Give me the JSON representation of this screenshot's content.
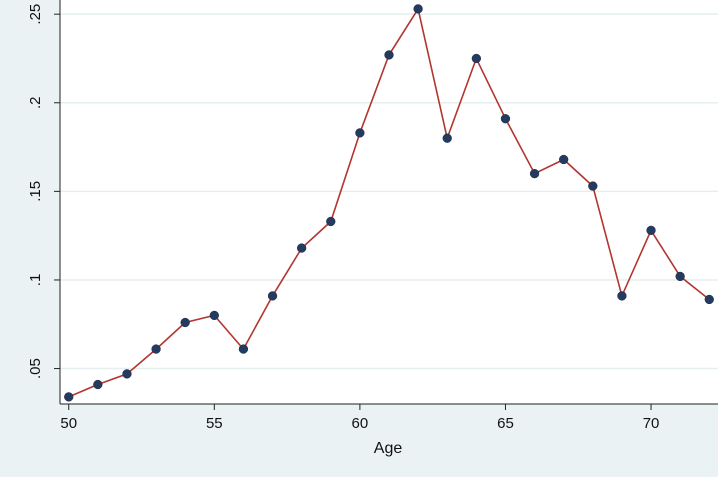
{
  "chart_data": {
    "type": "line",
    "title": "",
    "xlabel": "Age",
    "ylabel": "",
    "x": [
      50,
      51,
      52,
      53,
      54,
      55,
      56,
      57,
      58,
      59,
      60,
      61,
      62,
      63,
      64,
      65,
      66,
      67,
      68,
      69,
      70,
      71,
      72
    ],
    "series": [
      {
        "values": [
          0.034,
          0.041,
          0.047,
          0.061,
          0.076,
          0.08,
          0.061,
          0.091,
          0.118,
          0.133,
          0.183,
          0.227,
          0.253,
          0.18,
          0.225,
          0.191,
          0.16,
          0.168,
          0.153,
          0.091,
          0.128,
          0.102,
          0.089
        ],
        "line_color": "#b2352f",
        "marker_color": "#243a5e"
      }
    ],
    "xlim": [
      49.7,
      72.3
    ],
    "ylim": [
      0.03,
      0.258
    ],
    "xticks": [
      50,
      55,
      60,
      65,
      70
    ],
    "xtick_labels": [
      "50",
      "55",
      "60",
      "65",
      "70"
    ],
    "yticks": [
      0.05,
      0.1,
      0.15,
      0.2,
      0.25
    ],
    "ytick_labels": [
      ".05",
      ".1",
      ".15",
      ".2",
      ".25"
    ],
    "grid": true,
    "legend": "none",
    "plot_background": "#ffffff",
    "outer_background": "#eaf2f3",
    "grid_color": "#e6eef0"
  }
}
